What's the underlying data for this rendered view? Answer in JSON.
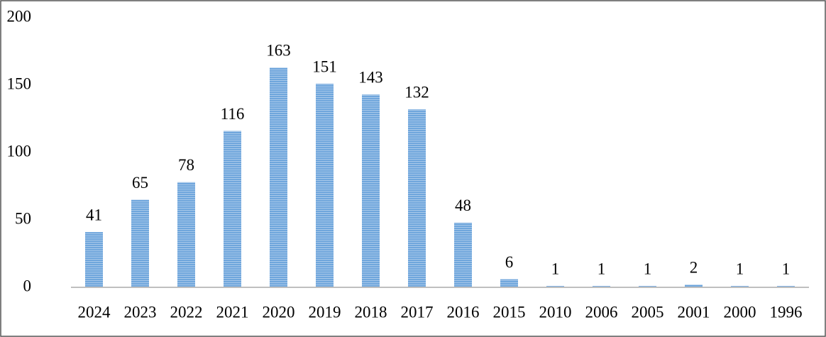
{
  "chart_data": {
    "type": "bar",
    "categories": [
      "2024",
      "2023",
      "2022",
      "2021",
      "2020",
      "2019",
      "2018",
      "2017",
      "2016",
      "2015",
      "2010",
      "2006",
      "2005",
      "2001",
      "2000",
      "1996"
    ],
    "values": [
      41,
      65,
      78,
      116,
      163,
      151,
      143,
      132,
      48,
      6,
      1,
      1,
      1,
      2,
      1,
      1
    ],
    "color": "#6fa6dc",
    "ylim": [
      0,
      200
    ],
    "yticks": [
      0,
      50,
      100,
      150,
      200
    ],
    "grid": false
  }
}
